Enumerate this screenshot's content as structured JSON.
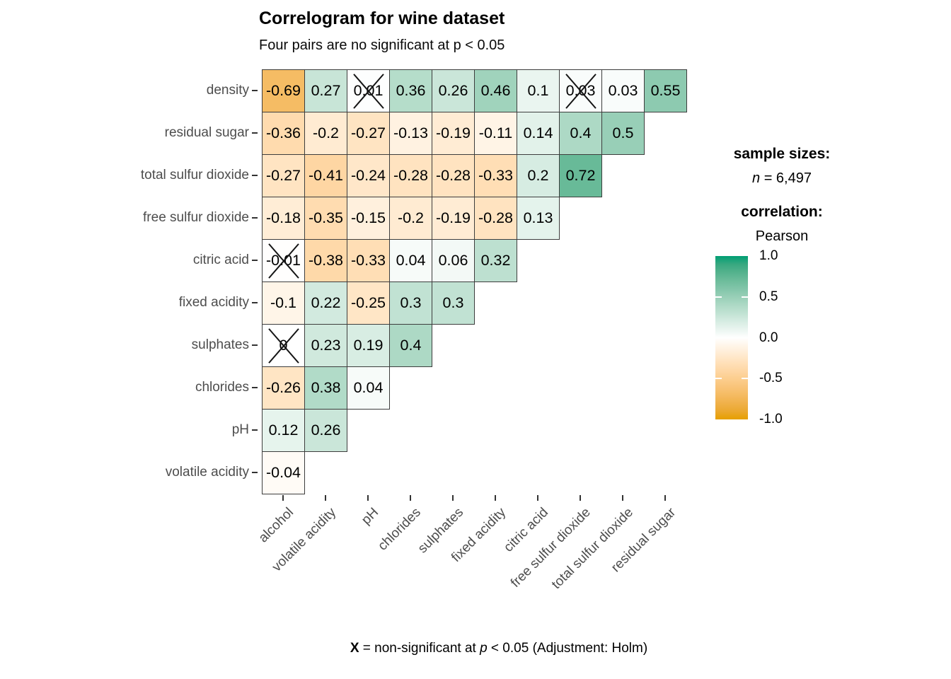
{
  "title": "Correlogram for wine dataset",
  "subtitle": "Four pairs are no significant at p < 0.05",
  "caption": {
    "bold": "X",
    "text1": " = non-significant at ",
    "italic": "p",
    "text2": " < 0.05 (Adjustment: Holm)"
  },
  "legend": {
    "sample_sizes_heading": "sample sizes:",
    "n_italic": "n",
    "n_rest": " = 6,497",
    "correlation_heading": "correlation:",
    "method": "Pearson",
    "colorbar_ticks": [
      "1.0",
      "0.5",
      "0.0",
      "-0.5",
      "-1.0"
    ]
  },
  "colors": {
    "positive_end": "#009E73",
    "negative_end": "#E69F00",
    "zero": "#FFFFFF",
    "axis_text": "#4D4D4D",
    "cell_border": "#3D3D3D"
  },
  "chart_data": {
    "type": "heatmap",
    "title": "Correlogram for wine dataset",
    "subtitle": "Four pairs are no significant at p < 0.05",
    "xlabel": "",
    "ylabel": "",
    "legend_position": "right",
    "colorscale": {
      "low": -1.0,
      "mid": 0.0,
      "high": 1.0,
      "low_color": "#E69F00",
      "mid_color": "#FFFFFF",
      "high_color": "#009E73"
    },
    "non_significant_marker": "X",
    "sample_size": "6,497",
    "correlation_method": "Pearson",
    "x_categories": [
      "alcohol",
      "volatile acidity",
      "pH",
      "chlorides",
      "sulphates",
      "fixed acidity",
      "citric acid",
      "free sulfur dioxide",
      "total sulfur dioxide",
      "residual sugar"
    ],
    "y_categories": [
      "density",
      "residual sugar",
      "total sulfur dioxide",
      "free sulfur dioxide",
      "citric acid",
      "fixed acidity",
      "sulphates",
      "chlorides",
      "pH",
      "volatile acidity"
    ],
    "rows": [
      {
        "label": "density",
        "cells": [
          {
            "value": -0.69,
            "label": "-0.69",
            "non_significant": false
          },
          {
            "value": 0.27,
            "label": "0.27",
            "non_significant": false
          },
          {
            "value": 0.01,
            "label": "0.01",
            "non_significant": true
          },
          {
            "value": 0.36,
            "label": "0.36",
            "non_significant": false
          },
          {
            "value": 0.26,
            "label": "0.26",
            "non_significant": false
          },
          {
            "value": 0.46,
            "label": "0.46",
            "non_significant": false
          },
          {
            "value": 0.1,
            "label": "0.1",
            "non_significant": false
          },
          {
            "value": 0.03,
            "label": "0.03",
            "non_significant": true
          },
          {
            "value": 0.03,
            "label": "0.03",
            "non_significant": false
          },
          {
            "value": 0.55,
            "label": "0.55",
            "non_significant": false
          }
        ]
      },
      {
        "label": "residual sugar",
        "cells": [
          {
            "value": -0.36,
            "label": "-0.36",
            "non_significant": false
          },
          {
            "value": -0.2,
            "label": "-0.2",
            "non_significant": false
          },
          {
            "value": -0.27,
            "label": "-0.27",
            "non_significant": false
          },
          {
            "value": -0.13,
            "label": "-0.13",
            "non_significant": false
          },
          {
            "value": -0.19,
            "label": "-0.19",
            "non_significant": false
          },
          {
            "value": -0.11,
            "label": "-0.11",
            "non_significant": false
          },
          {
            "value": 0.14,
            "label": "0.14",
            "non_significant": false
          },
          {
            "value": 0.4,
            "label": "0.4",
            "non_significant": false
          },
          {
            "value": 0.5,
            "label": "0.5",
            "non_significant": false
          }
        ]
      },
      {
        "label": "total sulfur dioxide",
        "cells": [
          {
            "value": -0.27,
            "label": "-0.27",
            "non_significant": false
          },
          {
            "value": -0.41,
            "label": "-0.41",
            "non_significant": false
          },
          {
            "value": -0.24,
            "label": "-0.24",
            "non_significant": false
          },
          {
            "value": -0.28,
            "label": "-0.28",
            "non_significant": false
          },
          {
            "value": -0.28,
            "label": "-0.28",
            "non_significant": false
          },
          {
            "value": -0.33,
            "label": "-0.33",
            "non_significant": false
          },
          {
            "value": 0.2,
            "label": "0.2",
            "non_significant": false
          },
          {
            "value": 0.72,
            "label": "0.72",
            "non_significant": false
          }
        ]
      },
      {
        "label": "free sulfur dioxide",
        "cells": [
          {
            "value": -0.18,
            "label": "-0.18",
            "non_significant": false
          },
          {
            "value": -0.35,
            "label": "-0.35",
            "non_significant": false
          },
          {
            "value": -0.15,
            "label": "-0.15",
            "non_significant": false
          },
          {
            "value": -0.2,
            "label": "-0.2",
            "non_significant": false
          },
          {
            "value": -0.19,
            "label": "-0.19",
            "non_significant": false
          },
          {
            "value": -0.28,
            "label": "-0.28",
            "non_significant": false
          },
          {
            "value": 0.13,
            "label": "0.13",
            "non_significant": false
          }
        ]
      },
      {
        "label": "citric acid",
        "cells": [
          {
            "value": -0.01,
            "label": "-0.01",
            "non_significant": true
          },
          {
            "value": -0.38,
            "label": "-0.38",
            "non_significant": false
          },
          {
            "value": -0.33,
            "label": "-0.33",
            "non_significant": false
          },
          {
            "value": 0.04,
            "label": "0.04",
            "non_significant": false
          },
          {
            "value": 0.06,
            "label": "0.06",
            "non_significant": false
          },
          {
            "value": 0.32,
            "label": "0.32",
            "non_significant": false
          }
        ]
      },
      {
        "label": "fixed acidity",
        "cells": [
          {
            "value": -0.1,
            "label": "-0.1",
            "non_significant": false
          },
          {
            "value": 0.22,
            "label": "0.22",
            "non_significant": false
          },
          {
            "value": -0.25,
            "label": "-0.25",
            "non_significant": false
          },
          {
            "value": 0.3,
            "label": "0.3",
            "non_significant": false
          },
          {
            "value": 0.3,
            "label": "0.3",
            "non_significant": false
          }
        ]
      },
      {
        "label": "sulphates",
        "cells": [
          {
            "value": 0,
            "label": "0",
            "non_significant": true
          },
          {
            "value": 0.23,
            "label": "0.23",
            "non_significant": false
          },
          {
            "value": 0.19,
            "label": "0.19",
            "non_significant": false
          },
          {
            "value": 0.4,
            "label": "0.4",
            "non_significant": false
          }
        ]
      },
      {
        "label": "chlorides",
        "cells": [
          {
            "value": -0.26,
            "label": "-0.26",
            "non_significant": false
          },
          {
            "value": 0.38,
            "label": "0.38",
            "non_significant": false
          },
          {
            "value": 0.04,
            "label": "0.04",
            "non_significant": false
          }
        ]
      },
      {
        "label": "pH",
        "cells": [
          {
            "value": 0.12,
            "label": "0.12",
            "non_significant": false
          },
          {
            "value": 0.26,
            "label": "0.26",
            "non_significant": false
          }
        ]
      },
      {
        "label": "volatile acidity",
        "cells": [
          {
            "value": -0.04,
            "label": "-0.04",
            "non_significant": false
          }
        ]
      }
    ]
  }
}
